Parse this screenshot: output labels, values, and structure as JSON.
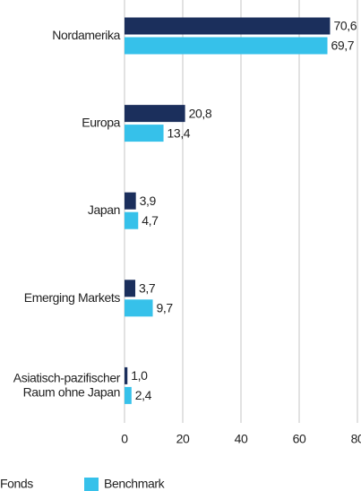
{
  "chart_data": {
    "type": "bar",
    "orientation": "horizontal",
    "categories": [
      "Nordamerika",
      "Europa",
      "Japan",
      "Emerging Markets",
      "Asiatisch-pazifischer Raum ohne Japan"
    ],
    "series": [
      {
        "name": "Fonds",
        "color": "#1b2f5c",
        "values": [
          70.6,
          20.8,
          3.9,
          3.7,
          1.0
        ],
        "value_labels": [
          "70,6",
          "20,8",
          "3,9",
          "3,7",
          "1,0"
        ]
      },
      {
        "name": "Benchmark",
        "color": "#36c1ea",
        "values": [
          69.7,
          13.4,
          4.7,
          9.7,
          2.4
        ],
        "value_labels": [
          "69,7",
          "13,4",
          "4,7",
          "9,7",
          "2,4"
        ]
      }
    ],
    "xlim": [
      0,
      80
    ],
    "xticks": [
      0,
      20,
      40,
      60,
      80
    ],
    "grid": true
  }
}
